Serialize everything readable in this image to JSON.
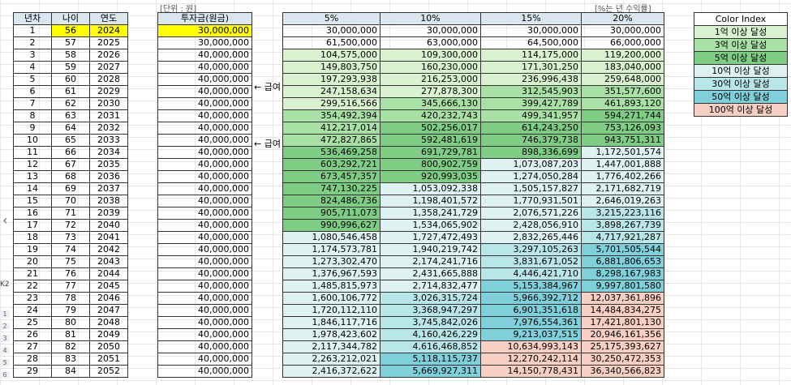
{
  "notes": {
    "unit": "[단위 : 원]",
    "rate": "[%는 년 수익률]"
  },
  "left_headers": [
    "년차",
    "나이",
    "연도"
  ],
  "invest_header": "투자금(원금)",
  "rate_headers": [
    "5%",
    "10%",
    "15%",
    "20%"
  ],
  "sidebar_label": "K2",
  "color_index": {
    "title": "Color Index",
    "items": [
      {
        "label": "1억 이상 달성",
        "color": "#d9f2d0"
      },
      {
        "label": "3억 이상 달성",
        "color": "#a9e0a5"
      },
      {
        "label": "5억 이상 달성",
        "color": "#7fcc85"
      },
      {
        "label": "10억 이상 달성",
        "color": "#dff2f2"
      },
      {
        "label": "30억 이상 달성",
        "color": "#b9e6e8"
      },
      {
        "label": "50억 이상 달성",
        "color": "#7fd0da"
      },
      {
        "label": "100억 이상 달성",
        "color": "#f9cfc4"
      }
    ]
  },
  "annotations": [
    {
      "row": 6,
      "label": "← 급여"
    },
    {
      "row": 11,
      "label": "← 급여"
    }
  ],
  "rows": [
    {
      "year": "1",
      "age": "56",
      "yr": "2024",
      "invest": "30,000,000",
      "v": [
        "30,000,000",
        "30,000,000",
        "30,000,000",
        "30,000,000"
      ],
      "c": [
        0,
        0,
        0,
        0
      ]
    },
    {
      "year": "2",
      "age": "57",
      "yr": "2025",
      "invest": "30,000,000",
      "v": [
        "61,500,000",
        "63,000,000",
        "64,500,000",
        "66,000,000"
      ],
      "c": [
        0,
        0,
        0,
        0
      ]
    },
    {
      "year": "3",
      "age": "58",
      "yr": "2026",
      "invest": "40,000,000",
      "v": [
        "104,575,000",
        "109,300,000",
        "114,175,000",
        "119,200,000"
      ],
      "c": [
        1,
        1,
        1,
        1
      ]
    },
    {
      "year": "4",
      "age": "59",
      "yr": "2027",
      "invest": "40,000,000",
      "v": [
        "149,803,750",
        "160,230,000",
        "171,301,250",
        "183,040,000"
      ],
      "c": [
        1,
        1,
        1,
        1
      ]
    },
    {
      "year": "5",
      "age": "60",
      "yr": "2028",
      "invest": "40,000,000",
      "v": [
        "197,293,938",
        "216,253,000",
        "236,996,438",
        "259,648,000"
      ],
      "c": [
        1,
        1,
        1,
        1
      ]
    },
    {
      "year": "6",
      "age": "61",
      "yr": "2029",
      "invest": "40,000,000",
      "v": [
        "247,158,634",
        "277,878,300",
        "312,545,903",
        "351,577,600"
      ],
      "c": [
        1,
        1,
        2,
        2
      ]
    },
    {
      "year": "7",
      "age": "62",
      "yr": "2030",
      "invest": "40,000,000",
      "v": [
        "299,516,566",
        "345,666,130",
        "399,427,789",
        "461,893,120"
      ],
      "c": [
        1,
        2,
        2,
        2
      ]
    },
    {
      "year": "8",
      "age": "63",
      "yr": "2031",
      "invest": "40,000,000",
      "v": [
        "354,492,394",
        "420,232,743",
        "499,341,957",
        "594,271,744"
      ],
      "c": [
        2,
        2,
        2,
        3
      ]
    },
    {
      "year": "9",
      "age": "64",
      "yr": "2032",
      "invest": "40,000,000",
      "v": [
        "412,217,014",
        "502,256,017",
        "614,243,250",
        "753,126,093"
      ],
      "c": [
        2,
        3,
        3,
        3
      ]
    },
    {
      "year": "10",
      "age": "65",
      "yr": "2033",
      "invest": "40,000,000",
      "v": [
        "472,827,865",
        "592,481,619",
        "746,379,738",
        "943,751,311"
      ],
      "c": [
        2,
        3,
        3,
        3
      ]
    },
    {
      "year": "11",
      "age": "66",
      "yr": "2034",
      "invest": "40,000,000",
      "v": [
        "536,469,258",
        "691,729,781",
        "898,336,699",
        "1,172,501,574"
      ],
      "c": [
        3,
        3,
        3,
        4
      ]
    },
    {
      "year": "12",
      "age": "67",
      "yr": "2035",
      "invest": "40,000,000",
      "v": [
        "603,292,721",
        "800,902,759",
        "1,073,087,203",
        "1,447,001,888"
      ],
      "c": [
        3,
        3,
        4,
        4
      ]
    },
    {
      "year": "13",
      "age": "68",
      "yr": "2036",
      "invest": "40,000,000",
      "v": [
        "673,457,357",
        "920,993,035",
        "1,274,050,284",
        "1,776,402,266"
      ],
      "c": [
        3,
        3,
        4,
        4
      ]
    },
    {
      "year": "14",
      "age": "69",
      "yr": "2037",
      "invest": "40,000,000",
      "v": [
        "747,130,225",
        "1,053,092,338",
        "1,505,157,827",
        "2,171,682,719"
      ],
      "c": [
        3,
        4,
        4,
        4
      ]
    },
    {
      "year": "15",
      "age": "70",
      "yr": "2038",
      "invest": "40,000,000",
      "v": [
        "824,486,736",
        "1,198,401,572",
        "1,770,931,501",
        "2,646,019,263"
      ],
      "c": [
        3,
        4,
        4,
        4
      ]
    },
    {
      "year": "16",
      "age": "71",
      "yr": "2039",
      "invest": "40,000,000",
      "v": [
        "905,711,073",
        "1,358,241,729",
        "2,076,571,226",
        "3,215,223,116"
      ],
      "c": [
        3,
        4,
        4,
        5
      ]
    },
    {
      "year": "17",
      "age": "72",
      "yr": "2040",
      "invest": "40,000,000",
      "v": [
        "990,996,627",
        "1,534,065,902",
        "2,428,056,910",
        "3,898,267,739"
      ],
      "c": [
        3,
        4,
        4,
        5
      ]
    },
    {
      "year": "18",
      "age": "73",
      "yr": "2041",
      "invest": "40,000,000",
      "v": [
        "1,080,546,458",
        "1,727,472,493",
        "2,832,265,446",
        "4,717,921,287"
      ],
      "c": [
        4,
        4,
        4,
        5
      ]
    },
    {
      "year": "19",
      "age": "74",
      "yr": "2042",
      "invest": "40,000,000",
      "v": [
        "1,174,573,781",
        "1,940,219,742",
        "3,297,105,263",
        "5,701,505,544"
      ],
      "c": [
        4,
        4,
        5,
        6
      ]
    },
    {
      "year": "20",
      "age": "75",
      "yr": "2043",
      "invest": "40,000,000",
      "v": [
        "1,273,302,470",
        "2,174,241,716",
        "3,831,671,052",
        "6,881,806,653"
      ],
      "c": [
        4,
        4,
        5,
        6
      ]
    },
    {
      "year": "21",
      "age": "76",
      "yr": "2044",
      "invest": "40,000,000",
      "v": [
        "1,376,967,593",
        "2,431,665,888",
        "4,446,421,710",
        "8,298,167,983"
      ],
      "c": [
        4,
        4,
        5,
        6
      ]
    },
    {
      "year": "22",
      "age": "77",
      "yr": "2045",
      "invest": "40,000,000",
      "v": [
        "1,485,815,973",
        "2,714,832,477",
        "5,153,384,967",
        "9,997,801,580"
      ],
      "c": [
        4,
        4,
        6,
        6
      ]
    },
    {
      "year": "23",
      "age": "78",
      "yr": "2046",
      "invest": "40,000,000",
      "v": [
        "1,600,106,772",
        "3,026,315,724",
        "5,966,392,712",
        "12,037,361,896"
      ],
      "c": [
        4,
        5,
        6,
        7
      ]
    },
    {
      "year": "24",
      "age": "79",
      "yr": "2047",
      "invest": "40,000,000",
      "v": [
        "1,720,112,110",
        "3,368,947,297",
        "6,901,351,618",
        "14,484,834,275"
      ],
      "c": [
        4,
        5,
        6,
        7
      ]
    },
    {
      "year": "25",
      "age": "80",
      "yr": "2048",
      "invest": "40,000,000",
      "v": [
        "1,846,117,716",
        "3,745,842,026",
        "7,976,554,361",
        "17,421,801,130"
      ],
      "c": [
        4,
        5,
        6,
        7
      ]
    },
    {
      "year": "26",
      "age": "81",
      "yr": "2049",
      "invest": "40,000,000",
      "v": [
        "1,978,423,602",
        "4,160,426,229",
        "9,213,037,515",
        "20,946,161,356"
      ],
      "c": [
        4,
        5,
        6,
        7
      ]
    },
    {
      "year": "27",
      "age": "82",
      "yr": "2050",
      "invest": "40,000,000",
      "v": [
        "2,117,344,782",
        "4,616,468,852",
        "10,634,993,143",
        "25,175,393,627"
      ],
      "c": [
        4,
        5,
        7,
        7
      ]
    },
    {
      "year": "28",
      "age": "83",
      "yr": "2051",
      "invest": "40,000,000",
      "v": [
        "2,263,212,021",
        "5,118,115,737",
        "12,270,242,114",
        "30,250,472,353"
      ],
      "c": [
        4,
        6,
        7,
        7
      ]
    },
    {
      "year": "29",
      "age": "84",
      "yr": "2052",
      "invest": "40,000,000",
      "v": [
        "2,416,372,622",
        "5,669,927,311",
        "14,150,778,431",
        "36,340,566,823"
      ],
      "c": [
        4,
        6,
        7,
        7
      ]
    }
  ]
}
